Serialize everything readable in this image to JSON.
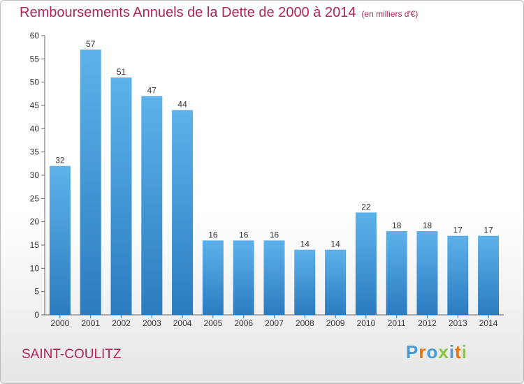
{
  "title": "Remboursements Annuels de la Dette de 2000 à 2014",
  "unit": "(en milliers d'€)",
  "town": "SAINT-COULITZ",
  "logo": {
    "text": "Proxiti",
    "colors": [
      "#4a9ad6",
      "#e8730c",
      "#4a9ad6",
      "#8cc63f",
      "#4a9ad6",
      "#e8730c",
      "#8cc63f"
    ]
  },
  "colors": {
    "accent": "#b0245a",
    "bar_top": "#5db2ea",
    "bar_bottom": "#2a7cc0"
  },
  "chart_data": {
    "type": "bar",
    "categories": [
      "2000",
      "2001",
      "2002",
      "2003",
      "2004",
      "2005",
      "2006",
      "2007",
      "2008",
      "2009",
      "2010",
      "2011",
      "2012",
      "2013",
      "2014"
    ],
    "values": [
      32,
      57,
      51,
      47,
      44,
      16,
      16,
      16,
      14,
      14,
      22,
      18,
      18,
      17,
      17
    ],
    "ylim": [
      0,
      60
    ],
    "yticks": [
      0,
      5,
      10,
      15,
      20,
      25,
      30,
      35,
      40,
      45,
      50,
      55,
      60
    ],
    "grid": false
  }
}
